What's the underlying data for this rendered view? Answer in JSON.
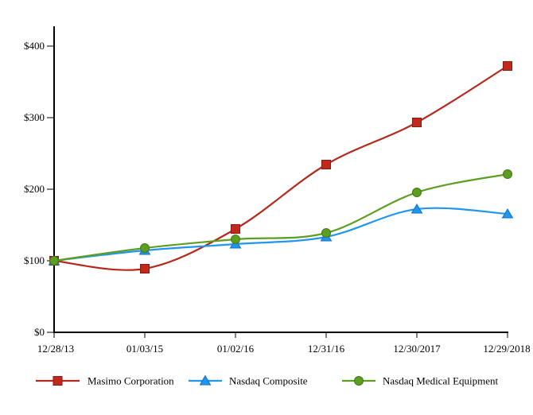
{
  "chart_data": {
    "type": "line",
    "title": "",
    "xlabel": "",
    "ylabel": "",
    "grid": false,
    "legend_position": "bottom",
    "ylim": [
      0,
      400
    ],
    "y_ticks": [
      {
        "value": 0,
        "label": "$0"
      },
      {
        "value": 100,
        "label": "$100"
      },
      {
        "value": 200,
        "label": "$200"
      },
      {
        "value": 300,
        "label": "$300"
      },
      {
        "value": 400,
        "label": "$400"
      }
    ],
    "categories": [
      "12/28/13",
      "01/03/15",
      "01/02/16",
      "12/31/16",
      "12/30/2017",
      "12/29/2018"
    ],
    "series": [
      {
        "name": "Masimo Corporation",
        "marker": "square",
        "color": "#b5281b",
        "marker_fill": "#c02a1c",
        "marker_stroke": "#8c1a10",
        "values": [
          100,
          89,
          144,
          234,
          293,
          372
        ]
      },
      {
        "name": "Nasdaq Composite",
        "marker": "triangle",
        "color": "#2196ef",
        "marker_fill": "#2196ef",
        "marker_stroke": "#1272c8",
        "values": [
          100,
          114,
          123,
          133,
          172,
          166
        ]
      },
      {
        "name": "Nasdaq Medical Equipment",
        "marker": "circle",
        "color": "#5c9e20",
        "marker_fill": "#5c9e20",
        "marker_stroke": "#457818",
        "values": [
          100,
          118,
          130,
          139,
          196,
          221
        ]
      }
    ]
  }
}
